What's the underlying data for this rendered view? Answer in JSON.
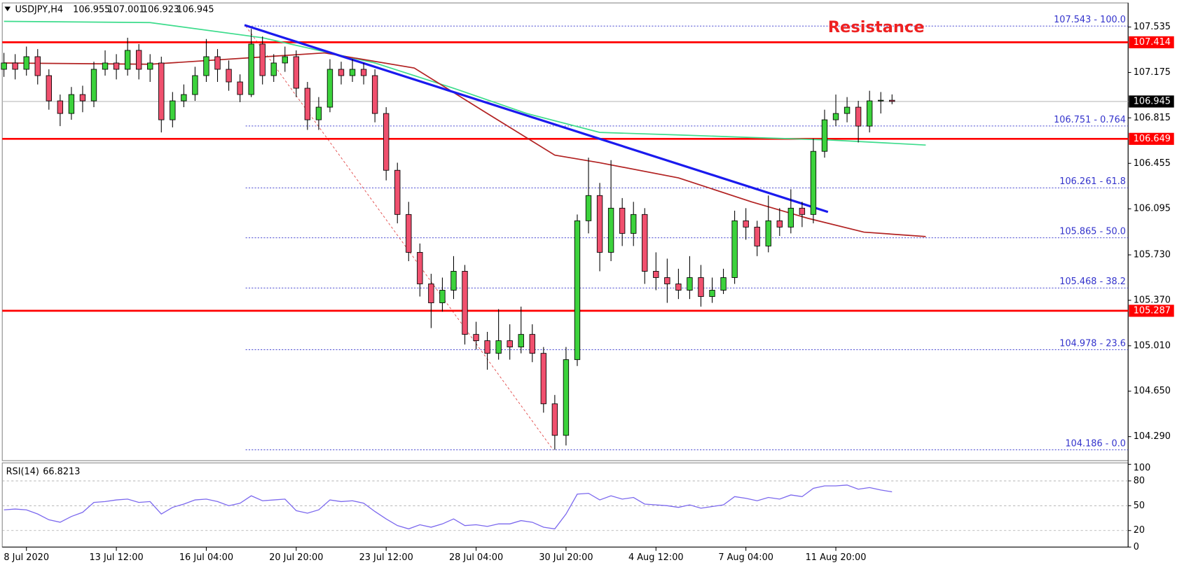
{
  "chart_data": [
    {
      "type": "candlestick",
      "title": "USDJPY,H4",
      "x": [
        0,
        2,
        4,
        6,
        8,
        10,
        12,
        14,
        16,
        18,
        20,
        22,
        24,
        26,
        28,
        30,
        32,
        34,
        36,
        38,
        40,
        42,
        44,
        46,
        48,
        50,
        52,
        54,
        56,
        58,
        60,
        62,
        64,
        66,
        68,
        70,
        72,
        74,
        76,
        78,
        80,
        82,
        84,
        86,
        88,
        90,
        92,
        94,
        96,
        98,
        100,
        102,
        104,
        106,
        108,
        110,
        112,
        114,
        116,
        118,
        120,
        122,
        124,
        126,
        128,
        130,
        132,
        134,
        136,
        138,
        140,
        142,
        144,
        146,
        148,
        150,
        152,
        154,
        156,
        158
      ],
      "open": [
        107.2,
        107.25,
        107.2,
        107.3,
        107.15,
        106.95,
        106.85,
        107.0,
        106.95,
        107.2,
        107.25,
        107.2,
        107.35,
        107.2,
        107.25,
        106.8,
        106.95,
        107.0,
        107.15,
        107.3,
        107.2,
        107.1,
        107.0,
        107.4,
        107.15,
        107.25,
        107.3,
        107.05,
        106.8,
        106.9,
        107.2,
        107.15,
        107.2,
        107.15,
        106.85,
        106.4,
        106.05,
        105.75,
        105.5,
        105.35,
        105.45,
        105.6,
        105.1,
        105.05,
        104.95,
        105.05,
        105.0,
        105.1,
        104.95,
        104.55,
        104.3,
        104.9,
        106.0,
        106.2,
        105.75,
        106.1,
        105.9,
        106.05,
        105.6,
        105.55,
        105.5,
        105.45,
        105.55,
        105.4,
        105.45,
        105.55,
        106.0,
        105.95,
        105.8,
        106.0,
        105.95,
        106.1,
        106.05,
        106.55,
        106.8,
        106.85,
        106.9,
        106.75,
        106.95,
        106.955
      ],
      "high": [
        107.33,
        107.32,
        107.38,
        107.36,
        107.2,
        107.0,
        107.06,
        107.07,
        107.26,
        107.35,
        107.32,
        107.45,
        107.4,
        107.32,
        107.3,
        107.02,
        107.08,
        107.22,
        107.44,
        107.36,
        107.27,
        107.16,
        107.52,
        107.46,
        107.32,
        107.38,
        107.35,
        107.1,
        106.98,
        107.28,
        107.26,
        107.28,
        107.25,
        107.2,
        106.9,
        106.46,
        106.15,
        105.82,
        105.58,
        105.55,
        105.72,
        105.65,
        105.2,
        105.12,
        105.3,
        105.18,
        105.32,
        105.18,
        105.0,
        104.62,
        105.0,
        106.05,
        106.5,
        106.3,
        106.48,
        106.18,
        106.15,
        106.1,
        105.75,
        105.7,
        105.62,
        105.72,
        105.65,
        105.55,
        105.62,
        106.08,
        106.1,
        106.0,
        106.2,
        106.1,
        106.25,
        106.15,
        106.65,
        106.88,
        107.0,
        106.98,
        106.95,
        107.03,
        107.02,
        107.001
      ],
      "low": [
        107.14,
        107.12,
        107.15,
        107.08,
        106.88,
        106.75,
        106.8,
        106.86,
        106.9,
        107.15,
        107.12,
        107.15,
        107.12,
        107.1,
        106.7,
        106.74,
        106.9,
        106.95,
        107.1,
        107.1,
        107.03,
        106.94,
        106.98,
        107.08,
        107.1,
        107.18,
        106.98,
        106.72,
        106.72,
        106.86,
        107.08,
        107.1,
        107.08,
        106.78,
        106.32,
        105.98,
        105.68,
        105.4,
        105.15,
        105.28,
        105.38,
        105.02,
        104.98,
        104.82,
        104.9,
        104.9,
        104.95,
        104.88,
        104.48,
        104.186,
        104.22,
        104.85,
        105.9,
        105.6,
        105.68,
        105.8,
        105.8,
        105.5,
        105.45,
        105.35,
        105.38,
        105.38,
        105.32,
        105.35,
        105.42,
        105.5,
        105.85,
        105.72,
        105.75,
        105.88,
        105.9,
        105.95,
        105.98,
        106.5,
        106.75,
        106.78,
        106.62,
        106.7,
        106.85,
        106.923
      ],
      "close": [
        107.25,
        107.2,
        107.3,
        107.15,
        106.95,
        106.85,
        107.0,
        106.95,
        107.2,
        107.25,
        107.2,
        107.35,
        107.2,
        107.25,
        106.8,
        106.95,
        107.0,
        107.15,
        107.3,
        107.2,
        107.1,
        107.0,
        107.4,
        107.15,
        107.25,
        107.3,
        107.05,
        106.8,
        106.9,
        107.2,
        107.15,
        107.2,
        107.15,
        106.85,
        106.4,
        106.05,
        105.75,
        105.5,
        105.35,
        105.45,
        105.6,
        105.1,
        105.05,
        104.95,
        105.05,
        105.0,
        105.1,
        104.95,
        104.55,
        104.3,
        104.9,
        106.0,
        106.2,
        105.75,
        106.1,
        105.9,
        106.05,
        105.6,
        105.55,
        105.5,
        105.45,
        105.55,
        105.4,
        105.45,
        105.55,
        106.0,
        105.95,
        105.8,
        106.0,
        105.95,
        106.1,
        106.05,
        106.55,
        106.8,
        106.85,
        106.9,
        106.75,
        106.95,
        106.955,
        106.945
      ],
      "up_color": "#3cd23c",
      "down_color": "#f0506e",
      "xlim": [
        -0.3,
        200
      ],
      "xticks": [
        {
          "value": 4,
          "label": "8 Jul 2020"
        },
        {
          "value": 20,
          "label": "13 Jul 12:00"
        },
        {
          "value": 36,
          "label": "16 Jul 04:00"
        },
        {
          "value": 52,
          "label": "20 Jul 20:00"
        },
        {
          "value": 68,
          "label": "23 Jul 12:00"
        },
        {
          "value": 84,
          "label": "28 Jul 04:00"
        },
        {
          "value": 100,
          "label": "30 Jul 20:00"
        },
        {
          "value": 116,
          "label": "4 Aug 12:00"
        },
        {
          "value": 132,
          "label": "7 Aug 04:00"
        },
        {
          "value": 148,
          "label": "11 Aug 20:00"
        }
      ],
      "ylim": [
        104.1,
        107.714
      ],
      "yticks": [
        107.535,
        107.175,
        106.815,
        106.455,
        106.095,
        {
          "value": 105.73,
          "label": "105.730"
        },
        {
          "value": 105.37,
          "label": "105.370"
        },
        {
          "value": 105.01,
          "label": "105.010"
        },
        {
          "value": 104.65,
          "label": "104.650"
        },
        {
          "value": 104.29,
          "label": "104.290"
        }
      ],
      "lines": [
        {
          "color": "#3ddc8c",
          "x": [
            0,
            26,
            46,
            66,
            80,
            93,
            106,
            120,
            133,
            147,
            164
          ],
          "values": [
            107.58,
            107.57,
            107.45,
            107.25,
            107.05,
            106.85,
            106.7,
            106.68,
            106.66,
            106.64,
            106.6
          ]
        },
        {
          "color": "#b22222",
          "x": [
            0,
            26,
            57,
            73,
            86,
            98,
            106,
            120,
            133,
            143,
            153,
            164
          ],
          "values": [
            107.25,
            107.24,
            107.33,
            107.21,
            106.85,
            106.52,
            106.46,
            106.34,
            106.15,
            106.02,
            105.91,
            105.875
          ]
        }
      ],
      "trendline": {
        "color": "#1a1aee",
        "x": [
          42.8,
          146.6
        ],
        "values": [
          107.55,
          106.07
        ]
      },
      "fib_line": {
        "color": "#e04040",
        "x": [
          43,
          97.7
        ],
        "values": [
          107.543,
          104.186
        ]
      },
      "fib_from_x": 43,
      "fib_levels": [
        {
          "value": 107.543,
          "label": "107.543 - 100.0"
        },
        {
          "value": 106.751,
          "label": "106.751 - 0.764"
        },
        {
          "value": 106.261,
          "label": "106.261 - 61.8"
        },
        {
          "value": 105.865,
          "label": "105.865 - 50.0"
        },
        {
          "value": 105.468,
          "label": "105.468 - 38.2"
        },
        {
          "value": 104.978,
          "label": "104.978 - 23.6"
        },
        {
          "value": 104.186,
          "label": "104.186 - 0.0"
        }
      ],
      "fib_color": "#3333cc",
      "levels": [
        107.414,
        106.649,
        105.287
      ],
      "level_color": "#ff0000",
      "annotation": "Resistance"
    },
    {
      "type": "line",
      "title": "RSI(14)",
      "color": "#7b68ee",
      "x": [
        0,
        2,
        4,
        6,
        8,
        10,
        12,
        14,
        16,
        18,
        20,
        22,
        24,
        26,
        28,
        30,
        32,
        34,
        36,
        38,
        40,
        42,
        44,
        46,
        48,
        50,
        52,
        54,
        56,
        58,
        60,
        62,
        64,
        66,
        68,
        70,
        72,
        74,
        76,
        78,
        80,
        82,
        84,
        86,
        88,
        90,
        92,
        94,
        96,
        98,
        100,
        102,
        104,
        106,
        108,
        110,
        112,
        114,
        116,
        118,
        120,
        122,
        124,
        126,
        128,
        130,
        132,
        134,
        136,
        138,
        140,
        142,
        144,
        146,
        148,
        150,
        152,
        154,
        156,
        158
      ],
      "values": [
        45,
        46,
        45,
        40,
        33,
        30,
        37,
        42,
        54,
        55,
        57,
        58,
        54,
        55,
        40,
        48,
        52,
        57,
        58,
        55,
        50,
        53,
        62,
        56,
        57,
        58,
        44,
        41,
        45,
        57,
        55,
        56,
        53,
        43,
        34,
        26,
        22,
        27,
        24,
        28,
        34,
        26,
        27,
        25,
        28,
        28,
        32,
        30,
        24,
        22,
        40,
        64,
        65,
        57,
        62,
        58,
        60,
        52,
        51,
        50,
        48,
        51,
        47,
        49,
        51,
        61,
        59,
        56,
        60,
        58,
        63,
        61,
        71,
        74,
        74,
        75,
        70,
        72,
        69,
        66.8213
      ],
      "ylim": [
        0,
        100
      ],
      "yticks": [
        100,
        80,
        50,
        20,
        0
      ],
      "levels": [
        80,
        50,
        20
      ]
    }
  ]
}
